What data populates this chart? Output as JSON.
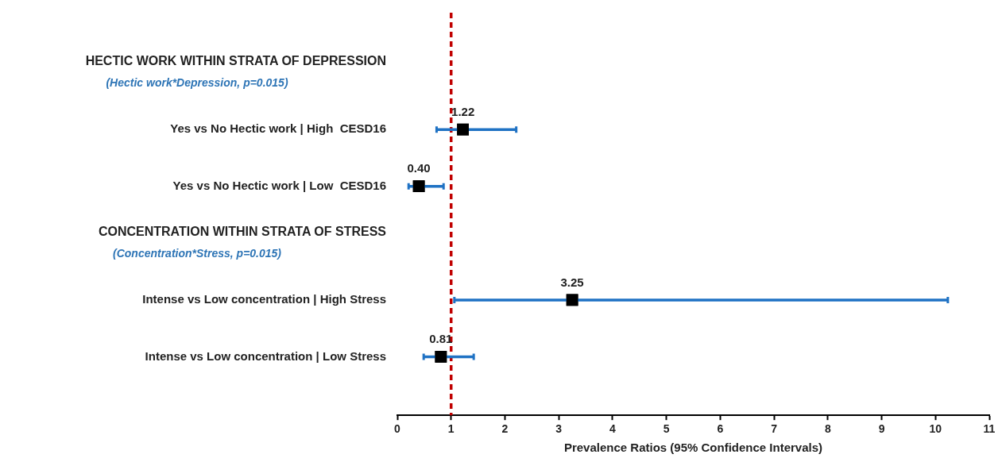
{
  "chart_data": {
    "type": "scatter",
    "orientation": "horizontal",
    "xlabel": "Prevalence Ratios (95% Confidence Intervals)",
    "categories": [
      "HECTIC WORK WITHIN STRATA OF DEPRESSION",
      "Yes vs No Hectic work | High  CESD16",
      "Yes vs No Hectic work | Low  CESD16",
      "CONCENTRATION WITHIN STRATA OF STRESS",
      "Intense vs Low concentration | High Stress",
      "Intense vs Low concentration | Low Stress"
    ],
    "values": [
      null,
      1.22,
      0.4,
      null,
      3.25,
      0.81
    ],
    "value_labels": [
      null,
      "1.22",
      "0.40",
      null,
      "3.25",
      "0.81"
    ],
    "errors": [
      null,
      [
        0.73,
        2.21
      ],
      [
        0.21,
        0.86
      ],
      null,
      [
        1.06,
        10.23
      ],
      [
        0.49,
        1.42
      ]
    ],
    "color": "#000000",
    "marker": "square",
    "xlim": [
      0,
      11
    ],
    "xticks": [
      0,
      1,
      2,
      3,
      4,
      5,
      6,
      7,
      8,
      9,
      10,
      11
    ],
    "ref_lines": [
      {
        "axis": "x",
        "value": 1,
        "color": "#c00000",
        "line_style": "dashed"
      }
    ],
    "annotations": [
      "(Hectic work*Depression, p=0.015)",
      "(Concentration*Stress, p=0.015)"
    ],
    "grid": false,
    "legend": false
  }
}
